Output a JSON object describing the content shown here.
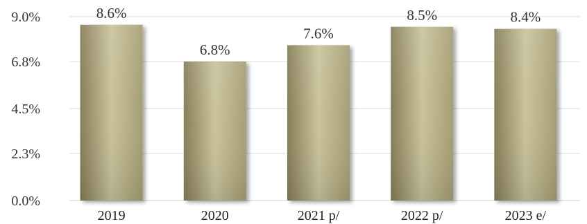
{
  "chart_data": {
    "type": "bar",
    "categories": [
      "2019",
      "2020",
      "2021 p/",
      "2022 p/",
      "2023 e/"
    ],
    "values": [
      8.6,
      6.8,
      7.6,
      8.5,
      8.4
    ],
    "value_labels": [
      "8.6%",
      "6.8%",
      "7.6%",
      "8.5%",
      "8.4%"
    ],
    "yticks": [
      0.0,
      2.3,
      4.5,
      6.8,
      9.0
    ],
    "ytick_labels": [
      "0.0%",
      "2.3%",
      "4.5%",
      "6.8%",
      "9.0%"
    ],
    "ylim": [
      0,
      9.0
    ],
    "title": "",
    "xlabel": "",
    "ylabel": "",
    "grid": true,
    "legend": "none",
    "colors": {
      "bar_light": "#c9c29b",
      "bar_mid": "#a49c72",
      "bar_dark": "#857c55",
      "grid": "#dcdcdc",
      "text": "#333333"
    }
  }
}
